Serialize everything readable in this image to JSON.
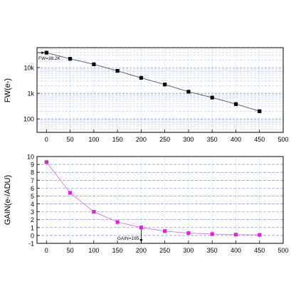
{
  "chart_data": [
    {
      "type": "line",
      "ylabel": "FW(e-)",
      "xlim": [
        -20,
        500
      ],
      "ylim": [
        30,
        60000
      ],
      "yscale": "log",
      "xticks": [
        0,
        50,
        100,
        150,
        200,
        250,
        300,
        350,
        400,
        450,
        500
      ],
      "yticks": [
        100,
        1000,
        10000
      ],
      "ytick_labels": [
        "100",
        "1k",
        "10k"
      ],
      "grid": true,
      "marker": "square",
      "marker_color": "#000000",
      "line_color": "#555555",
      "x": [
        0,
        50,
        100,
        150,
        200,
        250,
        300,
        350,
        400,
        450
      ],
      "y": [
        38200,
        22000,
        13500,
        7500,
        4000,
        2200,
        1150,
        680,
        380,
        200
      ],
      "annotation": {
        "text": "FW=38.2K",
        "x": 0,
        "y": 38200
      }
    },
    {
      "type": "line",
      "ylabel": "GAIN(e-/ADU)",
      "xlim": [
        -20,
        500
      ],
      "ylim": [
        -1,
        10
      ],
      "xticks": [
        0,
        50,
        100,
        150,
        200,
        250,
        300,
        350,
        400,
        450,
        500
      ],
      "yticks": [
        -1,
        0,
        1,
        2,
        3,
        4,
        5,
        6,
        7,
        8,
        9,
        10
      ],
      "grid": true,
      "marker": "square",
      "marker_color": "#e020e0",
      "line_color": "#e070e0",
      "x": [
        0,
        50,
        100,
        150,
        200,
        250,
        300,
        350,
        400,
        450
      ],
      "y": [
        9.3,
        5.4,
        3.0,
        1.7,
        1.0,
        0.55,
        0.3,
        0.18,
        0.1,
        0.07
      ],
      "annotation": {
        "text": "GAIN=195",
        "x": 200,
        "y": 1.0
      }
    }
  ]
}
